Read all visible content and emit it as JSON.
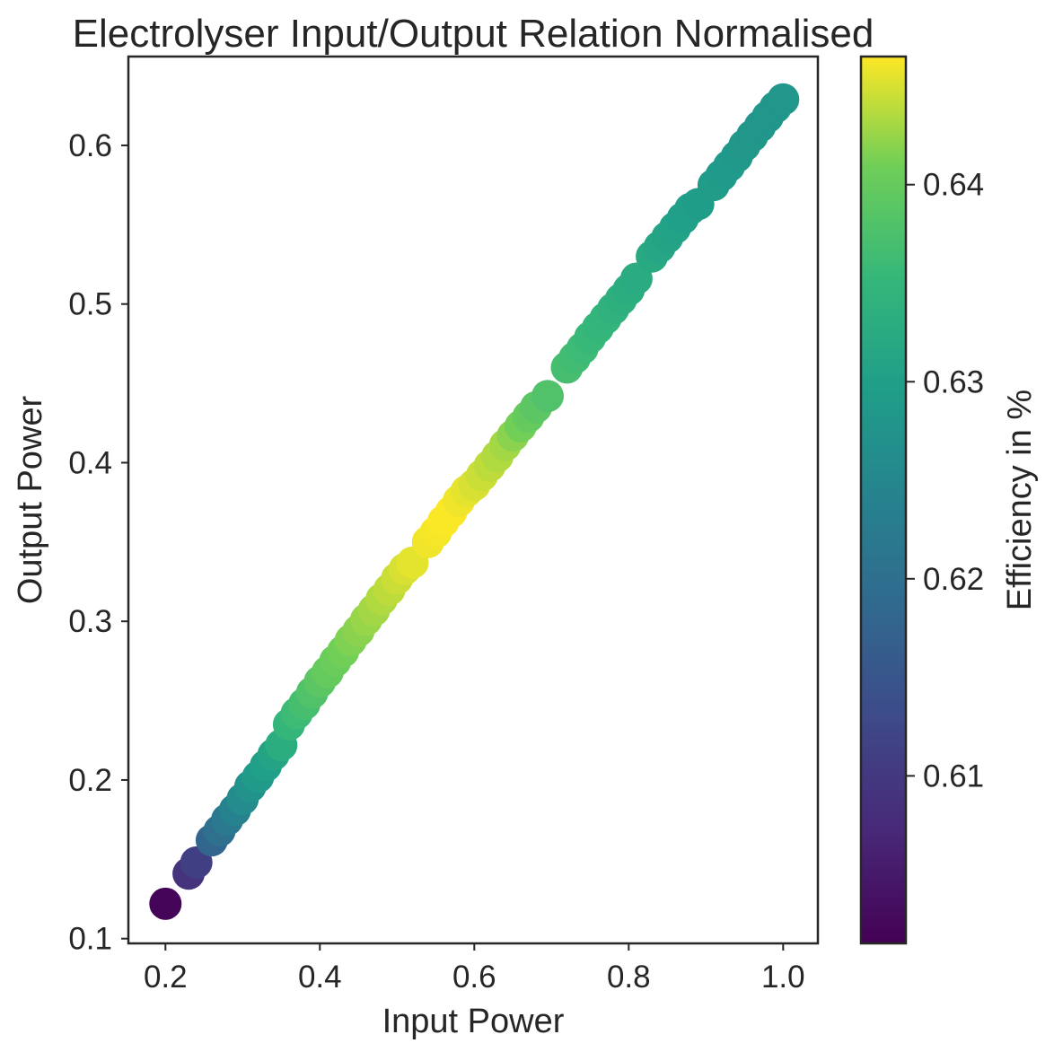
{
  "chart_data": {
    "type": "scatter",
    "title": "Electrolyser Input/Output Relation Normalised",
    "xlabel": "Input Power",
    "ylabel": "Output Power",
    "xlim": [
      0.152,
      1.045
    ],
    "ylim": [
      0.097,
      0.656
    ],
    "x_ticks": [
      0.2,
      0.4,
      0.6,
      0.8,
      1.0
    ],
    "x_tick_labels": [
      "0.2",
      "0.4",
      "0.6",
      "0.8",
      "1.0"
    ],
    "y_ticks": [
      0.1,
      0.2,
      0.3,
      0.4,
      0.5,
      0.6
    ],
    "y_tick_labels": [
      "0.1",
      "0.2",
      "0.3",
      "0.4",
      "0.5",
      "0.6"
    ],
    "grid": false,
    "colorbar": {
      "label": "Efficiency in %",
      "colormap": "viridis",
      "range": [
        0.6015,
        0.6465
      ],
      "ticks": [
        0.61,
        0.62,
        0.63,
        0.64
      ],
      "tick_labels": [
        "0.61",
        "0.62",
        "0.63",
        "0.64"
      ]
    },
    "series": [
      {
        "color_by": "efficiency",
        "x": [
          0.2,
          0.23,
          0.24,
          0.26,
          0.27,
          0.28,
          0.29,
          0.3,
          0.31,
          0.32,
          0.33,
          0.34,
          0.35,
          0.36,
          0.37,
          0.38,
          0.39,
          0.4,
          0.41,
          0.42,
          0.43,
          0.44,
          0.45,
          0.46,
          0.47,
          0.48,
          0.49,
          0.5,
          0.51,
          0.52,
          0.54,
          0.55,
          0.56,
          0.57,
          0.58,
          0.59,
          0.6,
          0.61,
          0.62,
          0.63,
          0.64,
          0.65,
          0.66,
          0.67,
          0.68,
          0.695,
          0.72,
          0.73,
          0.74,
          0.75,
          0.76,
          0.77,
          0.78,
          0.79,
          0.8,
          0.81,
          0.83,
          0.84,
          0.85,
          0.86,
          0.87,
          0.88,
          0.89,
          0.91,
          0.92,
          0.93,
          0.94,
          0.95,
          0.96,
          0.97,
          0.98,
          0.99,
          1.0
        ],
        "y": [
          0.122,
          0.141,
          0.148,
          0.162,
          0.168,
          0.175,
          0.181,
          0.188,
          0.196,
          0.202,
          0.209,
          0.216,
          0.222,
          0.235,
          0.242,
          0.248,
          0.255,
          0.262,
          0.268,
          0.275,
          0.281,
          0.288,
          0.294,
          0.301,
          0.307,
          0.314,
          0.32,
          0.327,
          0.333,
          0.337,
          0.35,
          0.356,
          0.363,
          0.369,
          0.376,
          0.382,
          0.386,
          0.392,
          0.398,
          0.404,
          0.411,
          0.417,
          0.423,
          0.429,
          0.435,
          0.442,
          0.46,
          0.466,
          0.472,
          0.479,
          0.485,
          0.491,
          0.497,
          0.503,
          0.509,
          0.516,
          0.53,
          0.536,
          0.542,
          0.548,
          0.554,
          0.56,
          0.563,
          0.575,
          0.581,
          0.587,
          0.593,
          0.6,
          0.606,
          0.612,
          0.618,
          0.624,
          0.629
        ],
        "efficiency": [
          0.602,
          0.609,
          0.611,
          0.618,
          0.62,
          0.622,
          0.624,
          0.626,
          0.6275,
          0.629,
          0.63,
          0.631,
          0.633,
          0.635,
          0.636,
          0.637,
          0.638,
          0.639,
          0.64,
          0.6405,
          0.641,
          0.6415,
          0.642,
          0.6425,
          0.643,
          0.6435,
          0.644,
          0.6445,
          0.645,
          0.6455,
          0.646,
          0.6462,
          0.6464,
          0.6464,
          0.646,
          0.6455,
          0.645,
          0.6445,
          0.644,
          0.6435,
          0.643,
          0.642,
          0.641,
          0.64,
          0.639,
          0.638,
          0.637,
          0.6365,
          0.636,
          0.6355,
          0.635,
          0.6345,
          0.634,
          0.6335,
          0.633,
          0.6325,
          0.632,
          0.6315,
          0.631,
          0.6305,
          0.63,
          0.6298,
          0.6295,
          0.6292,
          0.629,
          0.6288,
          0.6286,
          0.6284,
          0.6282,
          0.628,
          0.628,
          0.628,
          0.628
        ]
      }
    ]
  }
}
